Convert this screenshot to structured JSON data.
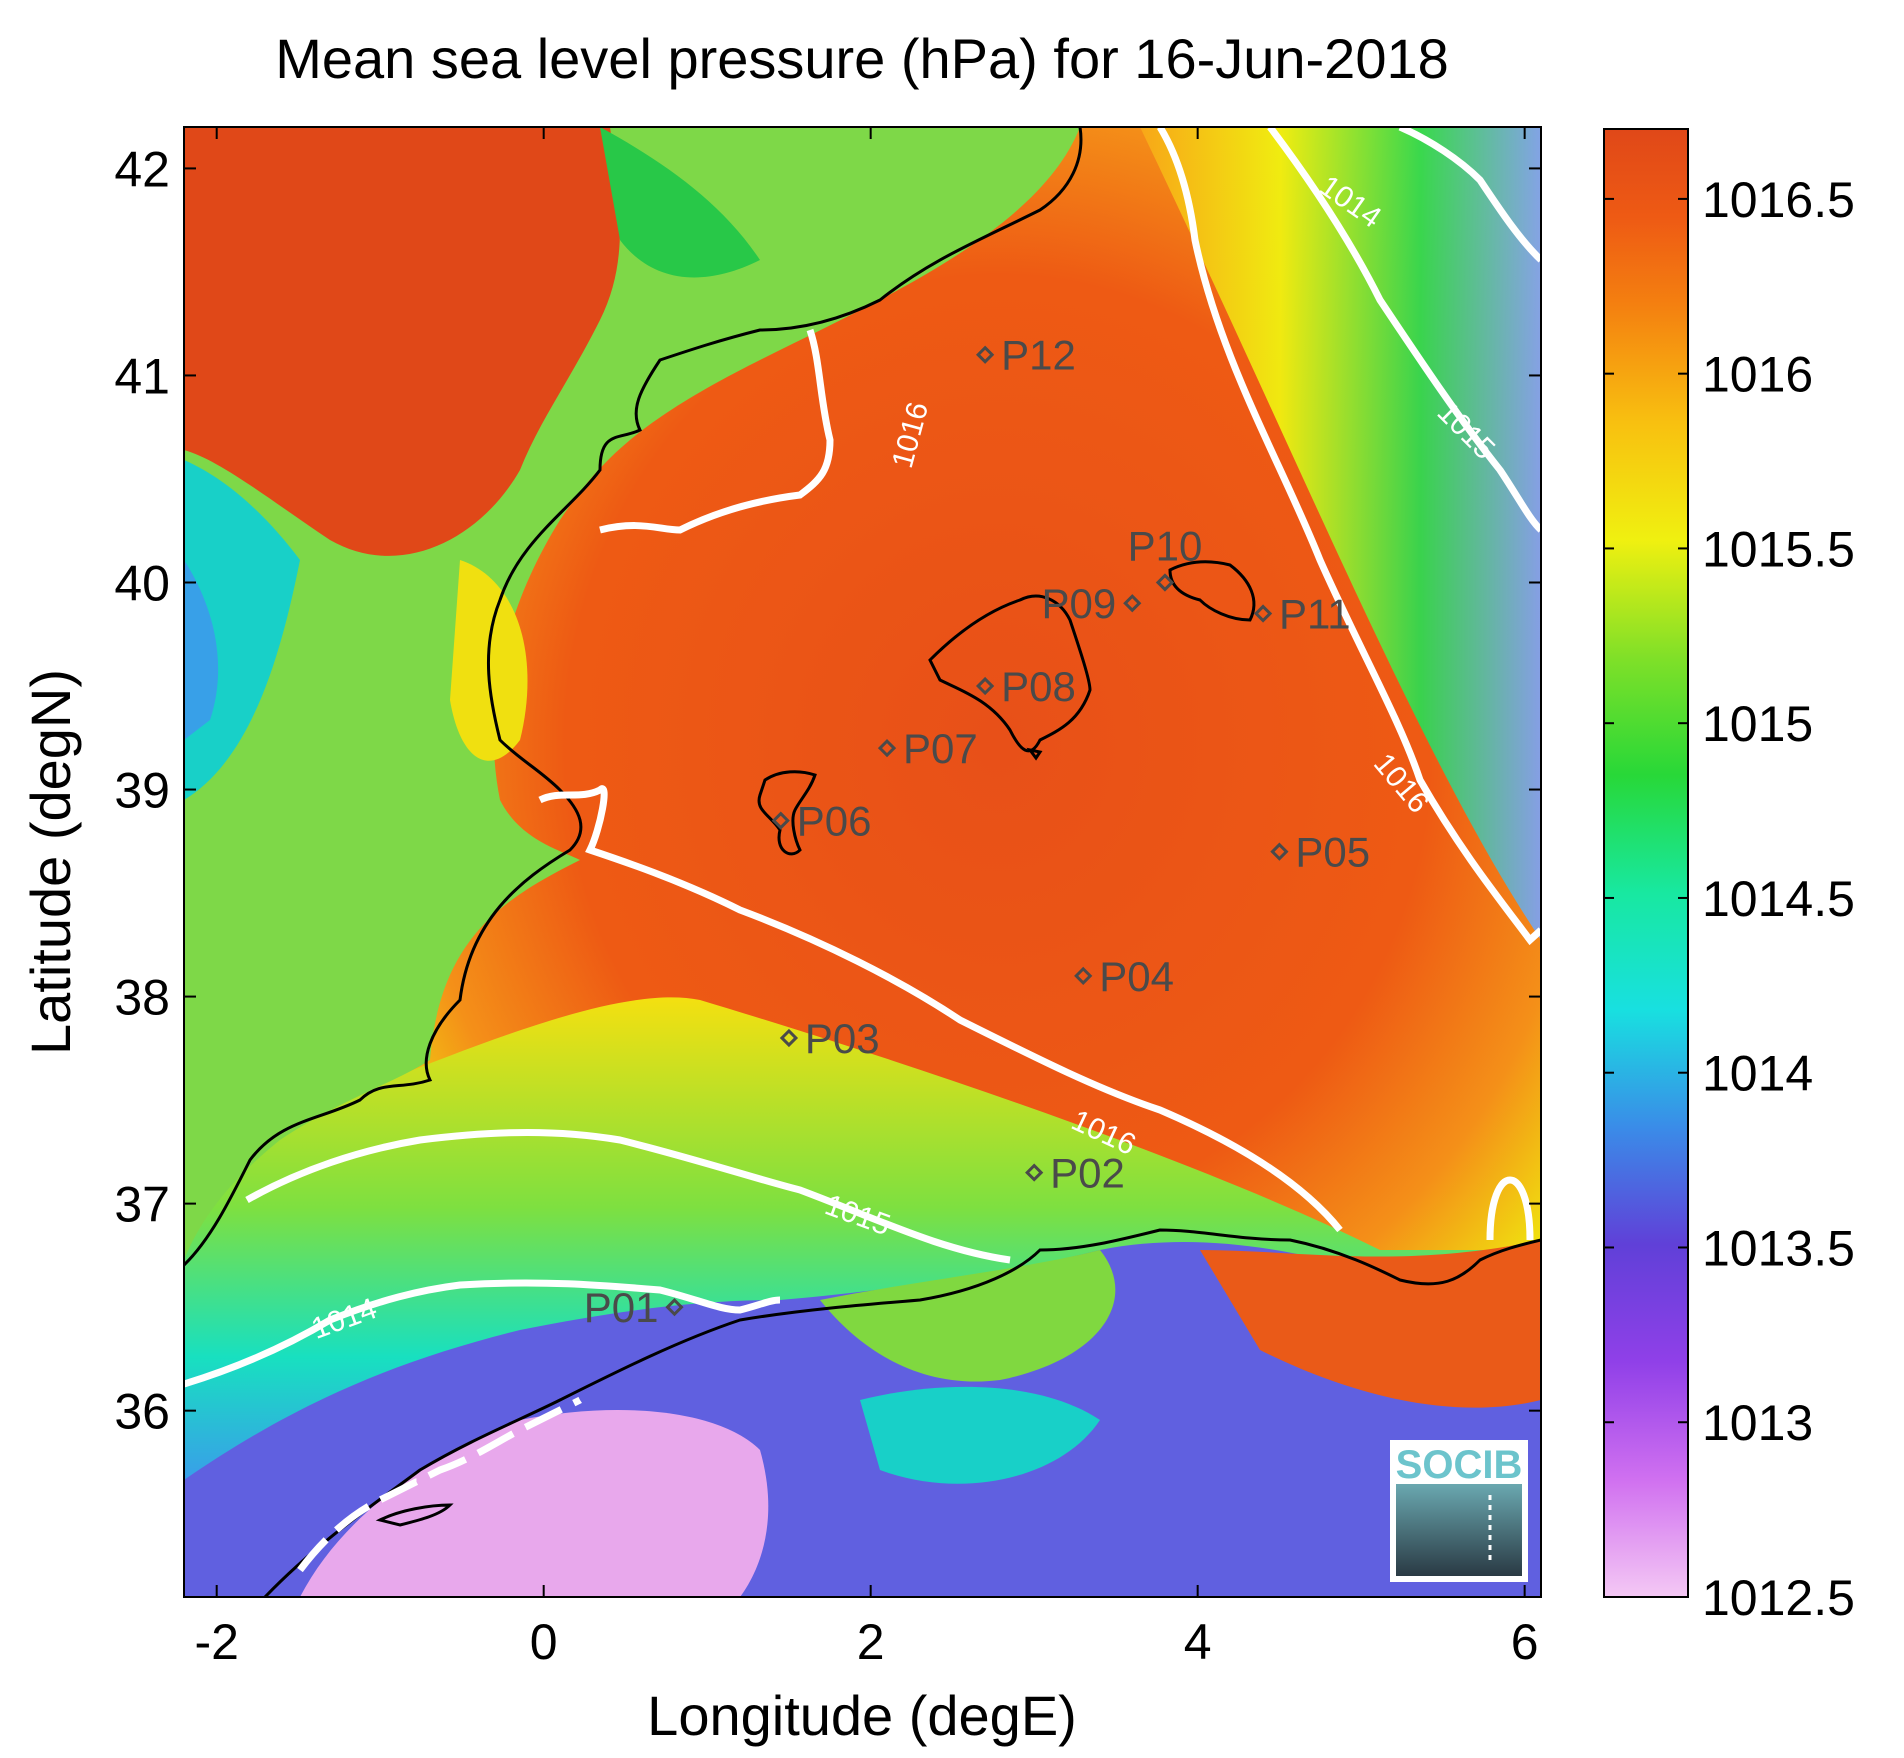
{
  "title": "Mean sea level pressure (hPa) for 16-Jun-2018",
  "xlabel": "Longitude (degE)",
  "ylabel": "Latitude (degN)",
  "xlim": [
    -2.2,
    6.1
  ],
  "ylim": [
    35.1,
    42.2
  ],
  "x_ticks": [
    -2,
    0,
    2,
    4,
    6
  ],
  "y_ticks": [
    36,
    37,
    38,
    39,
    40,
    41,
    42
  ],
  "colorbar": {
    "min": 1012.5,
    "max": 1016.7,
    "ticks": [
      "1012.5",
      "1013",
      "1013.5",
      "1014",
      "1014.5",
      "1015",
      "1015.5",
      "1016",
      "1016.5"
    ],
    "colormap": [
      "#f2c2f2",
      "#c050f0",
      "#7038d8",
      "#3a78e8",
      "#18d8e0",
      "#18e8a0",
      "#20d030",
      "#a0e020",
      "#f0f010",
      "#f8a810",
      "#f06010",
      "#e04818"
    ]
  },
  "contour_labels": [
    {
      "text": "1016",
      "lon": 2.3,
      "lat": 40.7,
      "angle": -75
    },
    {
      "text": "1014",
      "lon": 4.9,
      "lat": 41.8,
      "angle": 35
    },
    {
      "text": "1015",
      "lon": 5.6,
      "lat": 40.7,
      "angle": 45
    },
    {
      "text": "1016",
      "lon": 5.2,
      "lat": 39.0,
      "angle": 50
    },
    {
      "text": "1016",
      "lon": 3.4,
      "lat": 37.3,
      "angle": 25
    },
    {
      "text": "1015",
      "lon": 1.9,
      "lat": 36.9,
      "angle": 20
    },
    {
      "text": "1014",
      "lon": -1.2,
      "lat": 36.4,
      "angle": -20
    }
  ],
  "stations": [
    {
      "name": "P01",
      "lon": 0.8,
      "lat": 36.5,
      "label_side": "left"
    },
    {
      "name": "P02",
      "lon": 3.0,
      "lat": 37.15,
      "label_side": "right"
    },
    {
      "name": "P03",
      "lon": 1.5,
      "lat": 37.8,
      "label_side": "right"
    },
    {
      "name": "P04",
      "lon": 3.3,
      "lat": 38.1,
      "label_side": "right"
    },
    {
      "name": "P05",
      "lon": 4.5,
      "lat": 38.7,
      "label_side": "right"
    },
    {
      "name": "P06",
      "lon": 1.45,
      "lat": 38.85,
      "label_side": "right"
    },
    {
      "name": "P07",
      "lon": 2.1,
      "lat": 39.2,
      "label_side": "right"
    },
    {
      "name": "P08",
      "lon": 2.7,
      "lat": 39.5,
      "label_side": "right"
    },
    {
      "name": "P09",
      "lon": 3.6,
      "lat": 39.9,
      "label_side": "left"
    },
    {
      "name": "P10",
      "lon": 3.8,
      "lat": 40.0,
      "label_side": "top"
    },
    {
      "name": "P11",
      "lon": 4.4,
      "lat": 39.85,
      "label_side": "right"
    },
    {
      "name": "P12",
      "lon": 2.7,
      "lat": 41.1,
      "label_side": "right"
    }
  ],
  "logo_text": "SOCIB"
}
